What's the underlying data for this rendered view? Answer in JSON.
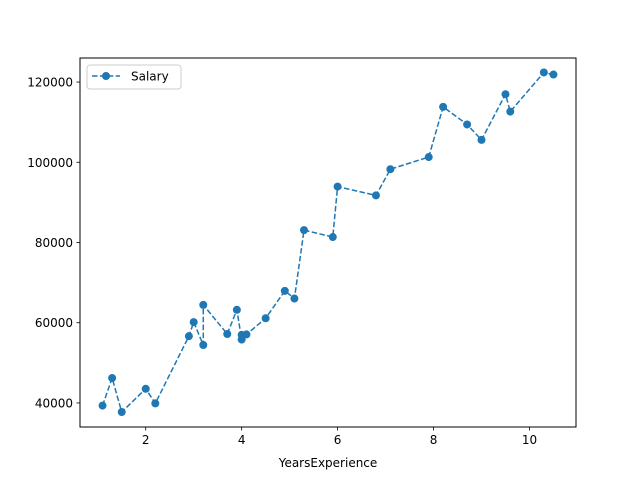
{
  "chart_data": {
    "type": "line",
    "title": "",
    "xlabel": "YearsExperience",
    "ylabel": "",
    "xlim": [
      0.63,
      10.97
    ],
    "ylim": [
      34000,
      126000
    ],
    "xticks": [
      2,
      4,
      6,
      8,
      10
    ],
    "yticks": [
      40000,
      60000,
      80000,
      100000,
      120000
    ],
    "grid": false,
    "legend": "upper left",
    "series": [
      {
        "name": "Salary",
        "color": "#1f77b4",
        "line_style": "dashed",
        "marker": "circle",
        "x": [
          1.1,
          1.3,
          1.5,
          2.0,
          2.2,
          2.9,
          3.0,
          3.2,
          3.2,
          3.7,
          3.9,
          4.0,
          4.0,
          4.1,
          4.5,
          4.9,
          5.1,
          5.3,
          5.9,
          6.0,
          6.8,
          7.1,
          7.9,
          8.2,
          8.7,
          9.0,
          9.5,
          9.6,
          10.3,
          10.5
        ],
        "y": [
          39343,
          46205,
          37731,
          43525,
          39891,
          56642,
          60150,
          54445,
          64445,
          57189,
          63218,
          55794,
          56957,
          57081,
          61111,
          67938,
          66029,
          83088,
          81363,
          93940,
          91738,
          98273,
          101302,
          113812,
          109431,
          105582,
          116969,
          112635,
          122391,
          121872
        ]
      }
    ]
  }
}
